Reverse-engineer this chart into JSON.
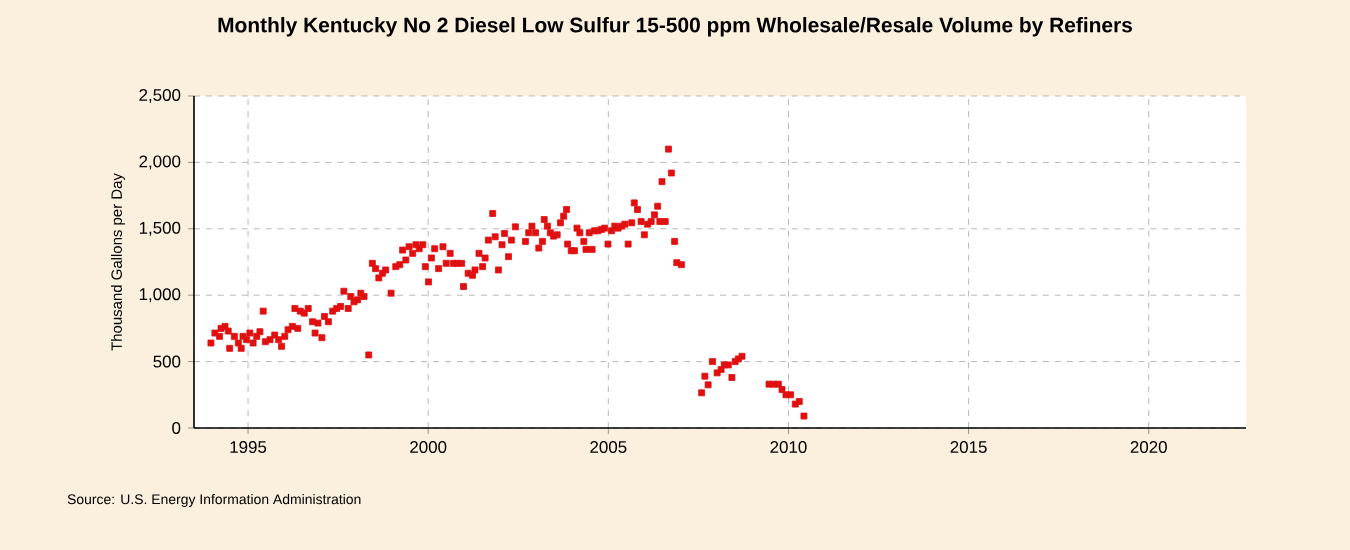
{
  "chart_data": {
    "type": "scatter",
    "title": "Monthly Kentucky No 2 Diesel Low Sulfur 15-500 ppm Wholesale/Resale Volume by Refiners",
    "ylabel": "Thousand Gallons per Day",
    "annotations": [
      "Source: U.S. Energy Information Administration"
    ],
    "xlim": [
      1993.5,
      2022.7
    ],
    "xticks": [
      1995,
      2000,
      2005,
      2010,
      2015,
      2020
    ],
    "ylim": [
      0,
      2500
    ],
    "yticks": [
      {
        "value": 0,
        "label": "0"
      },
      {
        "value": 500,
        "label": "500"
      },
      {
        "value": 1000,
        "label": "1,000"
      },
      {
        "value": 1500,
        "label": "1,500"
      },
      {
        "value": 2000,
        "label": "2,000"
      },
      {
        "value": 2500,
        "label": "2,500"
      }
    ],
    "grid": true,
    "marker": "square",
    "series": [
      {
        "color": "#e01010",
        "x": [
          1993.97,
          1994.08,
          1994.21,
          1994.25,
          1994.36,
          1994.45,
          1994.49,
          1994.62,
          1994.73,
          1994.81,
          1994.86,
          1994.96,
          1995.05,
          1995.14,
          1995.24,
          1995.33,
          1995.42,
          1995.48,
          1995.61,
          1995.74,
          1995.85,
          1995.93,
          1996.02,
          1996.11,
          1996.23,
          1996.3,
          1996.38,
          1996.45,
          1996.56,
          1996.67,
          1996.79,
          1996.86,
          1996.94,
          1997.05,
          1997.12,
          1997.23,
          1997.35,
          1997.46,
          1997.57,
          1997.66,
          1997.78,
          1997.85,
          1997.94,
          1998.04,
          1998.13,
          1998.22,
          1998.35,
          1998.45,
          1998.54,
          1998.63,
          1998.73,
          1998.82,
          1998.97,
          1999.1,
          1999.21,
          1999.29,
          1999.38,
          1999.47,
          1999.57,
          1999.66,
          1999.75,
          1999.85,
          1999.92,
          2000.01,
          2000.09,
          2000.18,
          2000.29,
          2000.41,
          2000.5,
          2000.61,
          2000.7,
          2000.8,
          2000.93,
          2000.98,
          2001.11,
          2001.23,
          2001.3,
          2001.41,
          2001.51,
          2001.58,
          2001.67,
          2001.79,
          2001.86,
          2001.95,
          2002.05,
          2002.12,
          2002.23,
          2002.31,
          2002.42,
          2002.7,
          2002.79,
          2002.88,
          2002.98,
          2003.07,
          2003.17,
          2003.22,
          2003.31,
          2003.39,
          2003.48,
          2003.58,
          2003.67,
          2003.76,
          2003.84,
          2003.87,
          2003.97,
          2004.06,
          2004.13,
          2004.21,
          2004.32,
          2004.38,
          2004.47,
          2004.55,
          2004.62,
          2004.71,
          2004.81,
          2004.9,
          2004.99,
          2005.09,
          2005.18,
          2005.27,
          2005.37,
          2005.46,
          2005.55,
          2005.65,
          2005.72,
          2005.81,
          2005.91,
          2006.0,
          2006.09,
          2006.19,
          2006.28,
          2006.37,
          2006.43,
          2006.49,
          2006.58,
          2006.67,
          2006.75,
          2006.84,
          2006.9,
          2007.03,
          2007.59,
          2007.68,
          2007.77,
          2007.89,
          2008.02,
          2008.13,
          2008.22,
          2008.33,
          2008.43,
          2008.52,
          2008.61,
          2008.71,
          2009.46,
          2009.59,
          2009.72,
          2009.82,
          2009.93,
          2010.06,
          2010.19,
          2010.3,
          2010.43
        ],
        "values": [
          640,
          715,
          690,
          750,
          765,
          730,
          600,
          690,
          640,
          600,
          690,
          665,
          715,
          640,
          690,
          725,
          880,
          650,
          665,
          700,
          665,
          615,
          690,
          740,
          765,
          900,
          750,
          880,
          865,
          900,
          800,
          715,
          790,
          680,
          840,
          800,
          880,
          900,
          915,
          1030,
          900,
          990,
          950,
          965,
          1015,
          990,
          550,
          1240,
          1200,
          1130,
          1165,
          1190,
          1015,
          1215,
          1230,
          1340,
          1265,
          1365,
          1315,
          1380,
          1350,
          1380,
          1215,
          1100,
          1280,
          1350,
          1200,
          1365,
          1240,
          1315,
          1240,
          1240,
          1240,
          1065,
          1165,
          1150,
          1190,
          1315,
          1215,
          1280,
          1415,
          1615,
          1440,
          1190,
          1380,
          1465,
          1290,
          1415,
          1515,
          1405,
          1470,
          1520,
          1470,
          1355,
          1405,
          1570,
          1520,
          1470,
          1445,
          1455,
          1545,
          1595,
          1645,
          1385,
          1335,
          1335,
          1505,
          1470,
          1405,
          1345,
          1470,
          1345,
          1485,
          1485,
          1495,
          1505,
          1385,
          1485,
          1520,
          1505,
          1520,
          1535,
          1385,
          1545,
          1695,
          1645,
          1555,
          1455,
          1535,
          1555,
          1605,
          1670,
          1555,
          1855,
          1555,
          2100,
          1920,
          1405,
          1245,
          1230,
          265,
          390,
          325,
          500,
          415,
          440,
          475,
          475,
          380,
          500,
          520,
          540,
          330,
          330,
          330,
          290,
          250,
          250,
          180,
          200,
          90
        ]
      }
    ]
  }
}
